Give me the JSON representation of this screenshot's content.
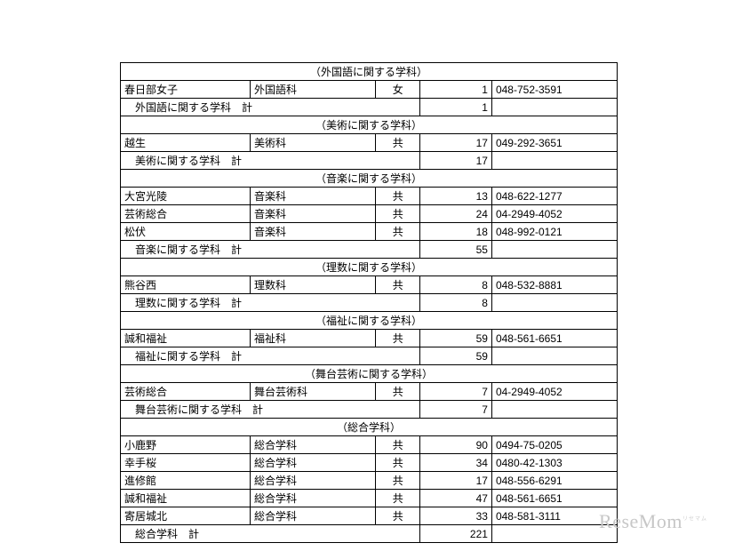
{
  "sections": [
    {
      "header": "（外国語に関する学科）",
      "rows": [
        {
          "school": "春日部女子",
          "dept": "外国語科",
          "sex": "女",
          "num": "1",
          "tel": "048-752-3591"
        }
      ],
      "subtotal": {
        "label": "　外国語に関する学科　計",
        "num": "1"
      }
    },
    {
      "header": "（美術に関する学科）",
      "rows": [
        {
          "school": "越生",
          "dept": "美術科",
          "sex": "共",
          "num": "17",
          "tel": "049-292-3651"
        }
      ],
      "subtotal": {
        "label": "　美術に関する学科　計",
        "num": "17"
      }
    },
    {
      "header": "（音楽に関する学科）",
      "rows": [
        {
          "school": "大宮光陵",
          "dept": "音楽科",
          "sex": "共",
          "num": "13",
          "tel": "048-622-1277"
        },
        {
          "school": "芸術総合",
          "dept": "音楽科",
          "sex": "共",
          "num": "24",
          "tel": "04-2949-4052"
        },
        {
          "school": "松伏",
          "dept": "音楽科",
          "sex": "共",
          "num": "18",
          "tel": "048-992-0121"
        }
      ],
      "subtotal": {
        "label": "　音楽に関する学科　計",
        "num": "55"
      }
    },
    {
      "header": "（理数に関する学科）",
      "rows": [
        {
          "school": "熊谷西",
          "dept": "理数科",
          "sex": "共",
          "num": "8",
          "tel": "048-532-8881"
        }
      ],
      "subtotal": {
        "label": "　理数に関する学科　計",
        "num": "8"
      }
    },
    {
      "header": "（福祉に関する学科）",
      "rows": [
        {
          "school": "誠和福祉",
          "dept": "福祉科",
          "sex": "共",
          "num": "59",
          "tel": "048-561-6651"
        }
      ],
      "subtotal": {
        "label": "　福祉に関する学科　計",
        "num": "59"
      }
    },
    {
      "header": "（舞台芸術に関する学科）",
      "rows": [
        {
          "school": "芸術総合",
          "dept": "舞台芸術科",
          "sex": "共",
          "num": "7",
          "tel": "04-2949-4052"
        }
      ],
      "subtotal": {
        "label": "　舞台芸術に関する学科　計",
        "num": "7"
      }
    },
    {
      "header": "（総合学科）",
      "rows": [
        {
          "school": "小鹿野",
          "dept": "総合学科",
          "sex": "共",
          "num": "90",
          "tel": "0494-75-0205"
        },
        {
          "school": "幸手桜",
          "dept": "総合学科",
          "sex": "共",
          "num": "34",
          "tel": "0480-42-1303"
        },
        {
          "school": "進修館",
          "dept": "総合学科",
          "sex": "共",
          "num": "17",
          "tel": "048-556-6291"
        },
        {
          "school": "誠和福祉",
          "dept": "総合学科",
          "sex": "共",
          "num": "47",
          "tel": "048-561-6651"
        },
        {
          "school": "寄居城北",
          "dept": "総合学科",
          "sex": "共",
          "num": "33",
          "tel": "048-581-3111"
        }
      ],
      "subtotal": {
        "label": "　総合学科　計",
        "num": "221"
      }
    }
  ],
  "watermark": "ReseMom"
}
